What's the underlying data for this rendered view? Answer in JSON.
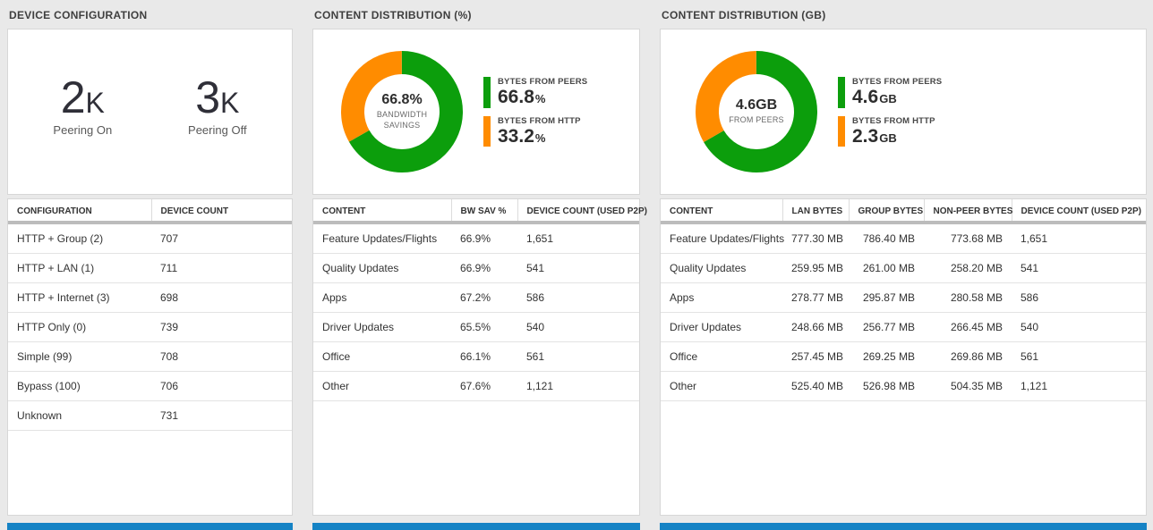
{
  "colors": {
    "peers_green": "#0c9e0c",
    "http_orange": "#ff8c00",
    "tile_peek_blue": "#1583c5"
  },
  "panels": [
    {
      "title": "DEVICE CONFIGURATION",
      "stats": [
        {
          "value": "2",
          "suffix": "K",
          "label": "Peering On"
        },
        {
          "value": "3",
          "suffix": "K",
          "label": "Peering Off"
        }
      ]
    },
    {
      "title": "CONTENT DISTRIBUTION (%)"
    },
    {
      "title": "CONTENT DISTRIBUTION (GB)"
    }
  ],
  "chart_data": [
    {
      "type": "donut",
      "title": "CONTENT DISTRIBUTION (%)",
      "center_value": "66.8%",
      "center_label": "BANDWIDTH SAVINGS",
      "slices": [
        {
          "label": "BYTES FROM PEERS",
          "value": 66.8,
          "display": "66.8",
          "unit": "%",
          "color": "#0c9e0c"
        },
        {
          "label": "BYTES FROM HTTP",
          "value": 33.2,
          "display": "33.2",
          "unit": "%",
          "color": "#ff8c00"
        }
      ]
    },
    {
      "type": "donut",
      "title": "CONTENT DISTRIBUTION (GB)",
      "center_value": "4.6GB",
      "center_label": "FROM PEERS",
      "slices": [
        {
          "label": "BYTES FROM PEERS",
          "value": 66.7,
          "display": "4.6",
          "unit": "GB",
          "color": "#0c9e0c"
        },
        {
          "label": "BYTES FROM HTTP",
          "value": 33.3,
          "display": "2.3",
          "unit": "GB",
          "color": "#ff8c00"
        }
      ]
    },
    {
      "type": "table",
      "title": "DEVICE CONFIGURATION",
      "columns": [
        "CONFIGURATION",
        "DEVICE COUNT"
      ],
      "rows": [
        [
          "HTTP + Group (2)",
          "707"
        ],
        [
          "HTTP + LAN (1)",
          "711"
        ],
        [
          "HTTP + Internet (3)",
          "698"
        ],
        [
          "HTTP Only (0)",
          "739"
        ],
        [
          "Simple (99)",
          "708"
        ],
        [
          "Bypass (100)",
          "706"
        ],
        [
          "Unknown",
          "731"
        ]
      ]
    },
    {
      "type": "table",
      "title": "CONTENT DISTRIBUTION (%)",
      "columns": [
        "CONTENT",
        "BW SAV %",
        "DEVICE COUNT (USED P2P)"
      ],
      "rows": [
        [
          "Feature Updates/Flights",
          "66.9%",
          "1,651"
        ],
        [
          "Quality Updates",
          "66.9%",
          "541"
        ],
        [
          "Apps",
          "67.2%",
          "586"
        ],
        [
          "Driver Updates",
          "65.5%",
          "540"
        ],
        [
          "Office",
          "66.1%",
          "561"
        ],
        [
          "Other",
          "67.6%",
          "1,121"
        ]
      ]
    },
    {
      "type": "table",
      "title": "CONTENT DISTRIBUTION (GB)",
      "columns": [
        "CONTENT",
        "LAN BYTES",
        "GROUP BYTES",
        "NON-PEER BYTES",
        "DEVICE COUNT (USED P2P)"
      ],
      "rows": [
        [
          "Feature Updates/Flights",
          "777.30 MB",
          "786.40 MB",
          "773.68 MB",
          "1,651"
        ],
        [
          "Quality Updates",
          "259.95 MB",
          "261.00 MB",
          "258.20 MB",
          "541"
        ],
        [
          "Apps",
          "278.77 MB",
          "295.87 MB",
          "280.58 MB",
          "586"
        ],
        [
          "Driver Updates",
          "248.66 MB",
          "256.77 MB",
          "266.45 MB",
          "540"
        ],
        [
          "Office",
          "257.45 MB",
          "269.25 MB",
          "269.86 MB",
          "561"
        ],
        [
          "Other",
          "525.40 MB",
          "526.98 MB",
          "504.35 MB",
          "1,121"
        ]
      ]
    }
  ]
}
